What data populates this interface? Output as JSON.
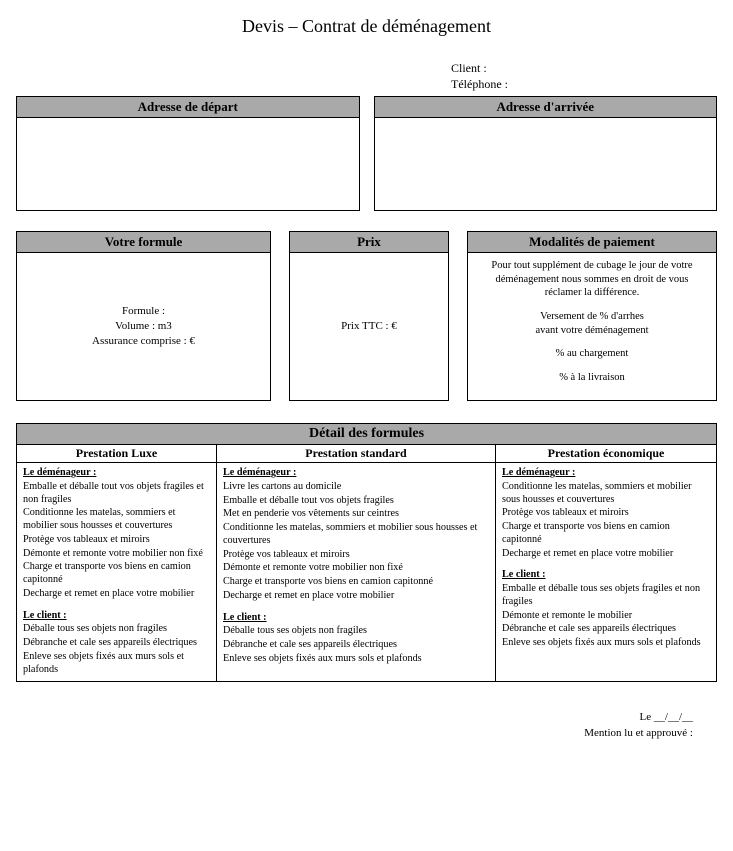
{
  "title": "Devis – Contrat de déménagement",
  "client": {
    "label_client": "Client :",
    "label_phone": "Téléphone :"
  },
  "addresses": {
    "departure_header": "Adresse de départ",
    "arrival_header": "Adresse d'arrivée"
  },
  "formule": {
    "header": "Votre formule",
    "line1": "Formule :",
    "line2": "Volume : m3",
    "line3": "Assurance comprise : €"
  },
  "prix": {
    "header": "Prix",
    "line1": "Prix TTC : €"
  },
  "paiement": {
    "header": "Modalités de paiement",
    "p1": "Pour tout supplément de cubage le jour de votre déménagement nous sommes en droit de vous réclamer la différence.",
    "p2a": "Versement de % d'arrhes",
    "p2b": "avant votre déménagement",
    "p3": "% au chargement",
    "p4": "% à la livraison"
  },
  "detail": {
    "title": "Détail des formules",
    "col1_header": "Prestation Luxe",
    "col2_header": "Prestation standard",
    "col3_header": "Prestation économique",
    "mover_label": "Le déménageur :",
    "client_label": "Le client :",
    "luxe_mover": [
      "Emballe et déballe tout vos objets fragiles et  non fragiles",
      "Conditionne les matelas, sommiers et mobilier sous housses et couvertures",
      "Protège vos tableaux  et miroirs",
      "Démonte et remonte votre mobilier non fixé",
      "Charge et transporte vos biens en camion capitonné",
      "Decharge et remet en place votre mobilier"
    ],
    "luxe_client": [
      "Déballe tous ses objets non fragiles",
      "Débranche et cale ses appareils électriques",
      "Enleve ses objets fixés aux murs sols et plafonds"
    ],
    "std_mover": [
      "Livre les cartons au domicile",
      "Emballe et déballe tout vos objets fragiles",
      "Met en penderie vos vêtements sur ceintres",
      "Conditionne les matelas, sommiers et mobilier sous housses et couvertures",
      "Protège vos tableaux  et miroirs",
      "Démonte et remonte votre mobilier non fixé",
      "Charge et transporte vos biens en camion capitonné",
      "Decharge et remet en place votre mobilier"
    ],
    "std_client": [
      "Déballe tous ses objets non fragiles",
      "Débranche et cale ses appareils électriques",
      "Enleve ses objets fixés aux murs sols et plafonds"
    ],
    "eco_mover": [
      "Conditionne les matelas, sommiers et mobilier sous housses et couvertures",
      "Protège vos tableaux  et miroirs",
      "Charge et transporte vos biens en camion capitonné",
      "Decharge et remet en place votre mobilier"
    ],
    "eco_client": [
      "Emballe et déballe tous ses objets fragiles et non fragiles",
      "Démonte et remonte le mobilier",
      "Débranche et cale ses appareils électriques",
      "Enleve ses objets fixés aux murs sols et plafonds"
    ]
  },
  "footer": {
    "date": "Le   __/__/__",
    "mention": "Mention lu et approuvé :"
  },
  "colors": {
    "header_bg": "#a9a9a9",
    "border": "#000000",
    "bg": "#ffffff"
  }
}
